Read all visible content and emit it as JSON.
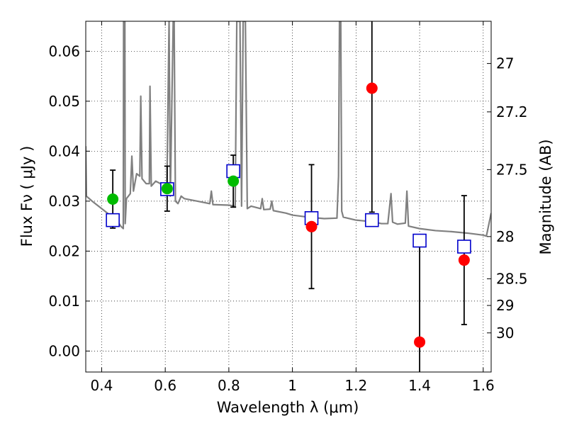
{
  "chart_data": {
    "type": "scatter",
    "xlabel": "Wavelength  λ (μm)",
    "ylabel": "Flux  Fν  ( μJy )",
    "y2label": "Magnitude (AB)",
    "xlim": [
      0.35,
      1.625
    ],
    "ylim": [
      -0.0042,
      0.066
    ],
    "x_ticks": [
      {
        "value": 0.4,
        "label": "0.4"
      },
      {
        "value": 0.6,
        "label": "0.6"
      },
      {
        "value": 0.8,
        "label": "0.8"
      },
      {
        "value": 1.0,
        "label": "1"
      },
      {
        "value": 1.2,
        "label": "1.2"
      },
      {
        "value": 1.4,
        "label": "1.4"
      },
      {
        "value": 1.6,
        "label": "1.6"
      }
    ],
    "y_ticks": [
      {
        "value": 0.0,
        "label": "0.00"
      },
      {
        "value": 0.01,
        "label": "0.01"
      },
      {
        "value": 0.02,
        "label": "0.02"
      },
      {
        "value": 0.03,
        "label": "0.03"
      },
      {
        "value": 0.04,
        "label": "0.04"
      },
      {
        "value": 0.05,
        "label": "0.05"
      },
      {
        "value": 0.06,
        "label": "0.06"
      }
    ],
    "y2_ticks": [
      {
        "mag": 27.0,
        "label": "27"
      },
      {
        "mag": 27.2,
        "label": "27.2"
      },
      {
        "mag": 27.5,
        "label": "27.5"
      },
      {
        "mag": 28.0,
        "label": "28"
      },
      {
        "mag": 28.5,
        "label": "28.5"
      },
      {
        "mag": 29.0,
        "label": "29"
      },
      {
        "mag": 30.0,
        "label": "30"
      }
    ],
    "grid": true,
    "colors": {
      "model": "#808080",
      "observed_optical": "#00bb00",
      "observed_nir": "#ff0000",
      "model_photometry": "#0000cc",
      "errorbar": "#000000"
    },
    "series": [
      {
        "points": [
          {
            "x": 0.435,
            "y": 0.0304,
            "err": 0.0058
          },
          {
            "x": 0.606,
            "y": 0.0325,
            "err": 0.0045
          },
          {
            "x": 0.814,
            "y": 0.034,
            "err": 0.0052
          }
        ]
      },
      {
        "points": [
          {
            "x": 1.06,
            "y": 0.0249,
            "err": 0.0124
          },
          {
            "x": 1.25,
            "y": 0.0526,
            "err": 0.0248
          },
          {
            "x": 1.4,
            "y": 0.0018,
            "err": 0.0195
          },
          {
            "x": 1.54,
            "y": 0.0182,
            "err": 0.0129
          }
        ]
      },
      {
        "points": [
          {
            "x": 0.435,
            "y": 0.0262
          },
          {
            "x": 0.606,
            "y": 0.0324
          },
          {
            "x": 0.814,
            "y": 0.036
          },
          {
            "x": 1.06,
            "y": 0.0266
          },
          {
            "x": 1.25,
            "y": 0.0262
          },
          {
            "x": 1.4,
            "y": 0.0221
          },
          {
            "x": 1.54,
            "y": 0.0209
          }
        ]
      },
      {
        "line": [
          [
            0.35,
            0.041
          ],
          [
            0.352,
            0.031
          ],
          [
            0.37,
            0.03
          ],
          [
            0.4,
            0.0285
          ],
          [
            0.43,
            0.027
          ],
          [
            0.45,
            0.026
          ],
          [
            0.46,
            0.025
          ],
          [
            0.468,
            0.0245
          ],
          [
            0.469,
            0.066
          ],
          [
            0.473,
            0.066
          ],
          [
            0.474,
            0.0255
          ],
          [
            0.478,
            0.0305
          ],
          [
            0.49,
            0.0315
          ],
          [
            0.495,
            0.039
          ],
          [
            0.5,
            0.032
          ],
          [
            0.51,
            0.0355
          ],
          [
            0.52,
            0.035
          ],
          [
            0.523,
            0.051
          ],
          [
            0.527,
            0.0345
          ],
          [
            0.54,
            0.0335
          ],
          [
            0.55,
            0.0335
          ],
          [
            0.552,
            0.053
          ],
          [
            0.556,
            0.033
          ],
          [
            0.57,
            0.034
          ],
          [
            0.585,
            0.0335
          ],
          [
            0.595,
            0.032
          ],
          [
            0.605,
            0.032
          ],
          [
            0.612,
            0.066
          ],
          [
            0.616,
            0.031
          ],
          [
            0.625,
            0.066
          ],
          [
            0.628,
            0.066
          ],
          [
            0.632,
            0.03
          ],
          [
            0.64,
            0.0295
          ],
          [
            0.65,
            0.031
          ],
          [
            0.66,
            0.0305
          ],
          [
            0.7,
            0.03
          ],
          [
            0.74,
            0.0295
          ],
          [
            0.745,
            0.032
          ],
          [
            0.75,
            0.0293
          ],
          [
            0.8,
            0.0292
          ],
          [
            0.82,
            0.029
          ],
          [
            0.825,
            0.066
          ],
          [
            0.835,
            0.066
          ],
          [
            0.84,
            0.029
          ],
          [
            0.845,
            0.066
          ],
          [
            0.852,
            0.066
          ],
          [
            0.858,
            0.0285
          ],
          [
            0.87,
            0.029
          ],
          [
            0.9,
            0.0285
          ],
          [
            0.905,
            0.0305
          ],
          [
            0.91,
            0.0283
          ],
          [
            0.93,
            0.0284
          ],
          [
            0.935,
            0.03
          ],
          [
            0.94,
            0.0281
          ],
          [
            0.98,
            0.0276
          ],
          [
            1.0,
            0.0272
          ],
          [
            1.05,
            0.0268
          ],
          [
            1.1,
            0.0265
          ],
          [
            1.14,
            0.0266
          ],
          [
            1.145,
            0.035
          ],
          [
            1.148,
            0.066
          ],
          [
            1.152,
            0.066
          ],
          [
            1.155,
            0.028
          ],
          [
            1.16,
            0.0268
          ],
          [
            1.2,
            0.0262
          ],
          [
            1.25,
            0.0259
          ],
          [
            1.28,
            0.0255
          ],
          [
            1.3,
            0.0255
          ],
          [
            1.31,
            0.0315
          ],
          [
            1.315,
            0.0258
          ],
          [
            1.33,
            0.0254
          ],
          [
            1.355,
            0.0256
          ],
          [
            1.36,
            0.032
          ],
          [
            1.365,
            0.025
          ],
          [
            1.4,
            0.0245
          ],
          [
            1.45,
            0.0241
          ],
          [
            1.5,
            0.0239
          ],
          [
            1.55,
            0.0236
          ],
          [
            1.6,
            0.0232
          ],
          [
            1.61,
            0.023
          ],
          [
            1.625,
            0.0276
          ]
        ]
      }
    ]
  }
}
